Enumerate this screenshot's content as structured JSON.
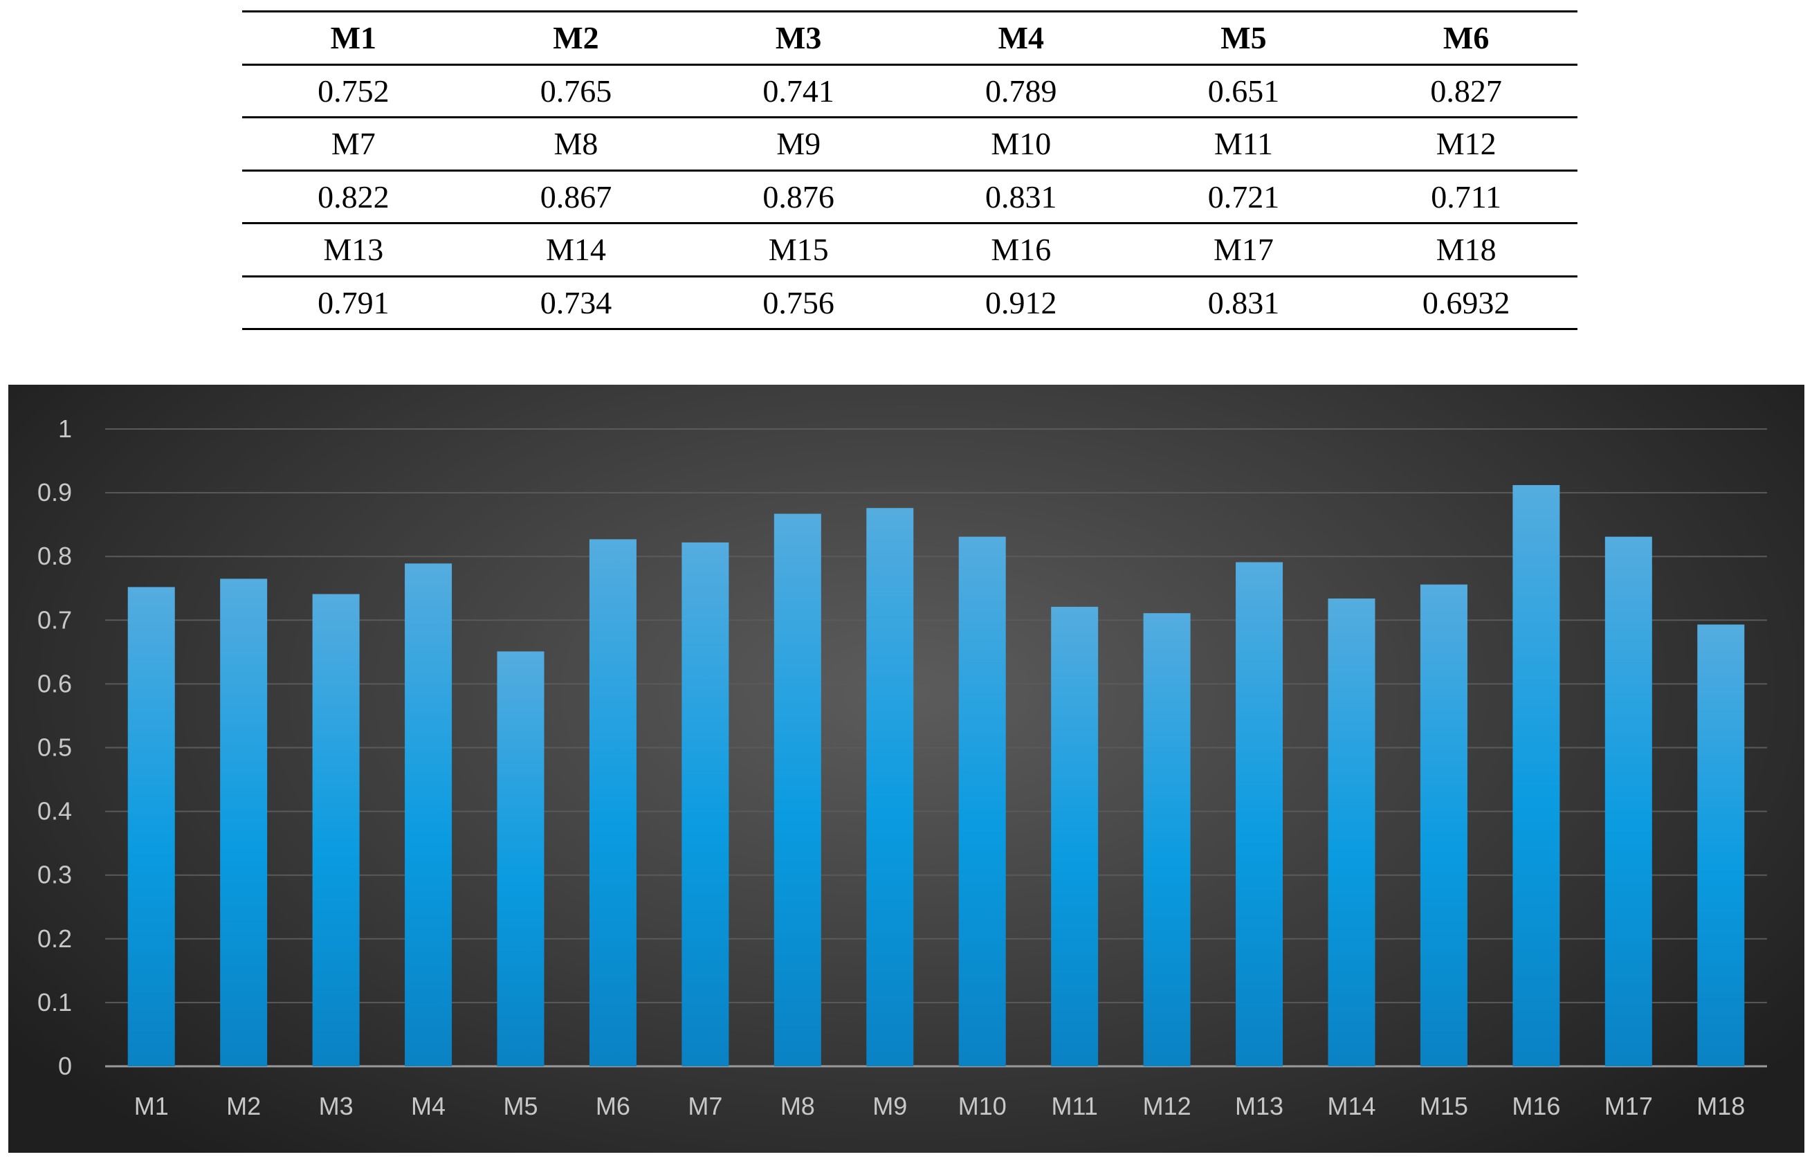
{
  "table": {
    "rows": [
      {
        "labels": [
          "M1",
          "M2",
          "M3",
          "M4",
          "M5",
          "M6"
        ],
        "values": [
          "0.752",
          "0.765",
          "0.741",
          "0.789",
          "0.651",
          "0.827"
        ]
      },
      {
        "labels": [
          "M7",
          "M8",
          "M9",
          "M10",
          "M11",
          "M12"
        ],
        "values": [
          "0.822",
          "0.867",
          "0.876",
          "0.831",
          "0.721",
          "0.711"
        ]
      },
      {
        "labels": [
          "M13",
          "M14",
          "M15",
          "M16",
          "M17",
          "M18"
        ],
        "values": [
          "0.791",
          "0.734",
          "0.756",
          "0.912",
          "0.831",
          "0.6932"
        ]
      }
    ]
  },
  "colors": {
    "bar_top": "#55acdf",
    "bar_mid": "#0a9be0",
    "bar_bottom": "#0a82c4",
    "panel_background": "#3e3e3e",
    "gridline": "#5a5a5a",
    "tick_label": "#c8c8c8"
  },
  "chart_data": {
    "type": "bar",
    "categories": [
      "M1",
      "M2",
      "M3",
      "M4",
      "M5",
      "M6",
      "M7",
      "M8",
      "M9",
      "M10",
      "M11",
      "M12",
      "M13",
      "M14",
      "M15",
      "M16",
      "M17",
      "M18"
    ],
    "values": [
      0.752,
      0.765,
      0.741,
      0.789,
      0.651,
      0.827,
      0.822,
      0.867,
      0.876,
      0.831,
      0.721,
      0.711,
      0.791,
      0.734,
      0.756,
      0.912,
      0.831,
      0.6932
    ],
    "ylim": [
      0,
      1
    ],
    "yticks": [
      "0",
      "0.1",
      "0.2",
      "0.3",
      "0.4",
      "0.5",
      "0.6",
      "0.7",
      "0.8",
      "0.9",
      "1"
    ],
    "grid": true,
    "legend": "none"
  }
}
